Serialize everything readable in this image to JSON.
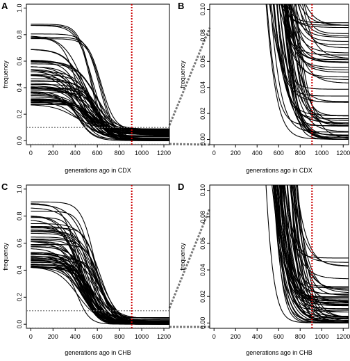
{
  "colors": {
    "curve": "#000000",
    "cutoff": "#cc0000",
    "guide": "#777777"
  },
  "chart_data": [
    {
      "panel": "A",
      "type": "line",
      "xlabel": "generations ago in CDX",
      "ylabel": "frequency",
      "xlim": [
        -40,
        1250
      ],
      "ylim": [
        -0.03,
        1.03
      ],
      "xticks": [
        "0",
        "200",
        "400",
        "600",
        "800",
        "1000",
        "1200"
      ],
      "yticks": [
        "0.0",
        "0.2",
        "0.4",
        "0.6",
        "0.8",
        "1.0"
      ],
      "xtick_values": [
        0,
        200,
        400,
        600,
        800,
        1000,
        1200
      ],
      "ytick_values": [
        0,
        0.2,
        0.4,
        0.6,
        0.8,
        1.0
      ],
      "cutoff_x": 910,
      "guide_y": [
        0.1,
        -0.03
      ],
      "series_generator": {
        "count": 58,
        "start_min": 0.27,
        "start_max": 0.88,
        "mid_min": 380,
        "mid_max": 640,
        "width": 75,
        "end_min": 0.0,
        "end_max": 0.11,
        "seed": 3
      }
    },
    {
      "panel": "B",
      "type": "line",
      "xlabel": "generations ago in CDX",
      "ylabel": "frequency",
      "xlim": [
        -40,
        1250
      ],
      "ylim": [
        -0.004,
        0.104
      ],
      "xticks": [
        "0",
        "200",
        "400",
        "600",
        "800",
        "1000",
        "1200"
      ],
      "yticks": [
        "0.00",
        "0.02",
        "0.04",
        "0.06",
        "0.08",
        "0.10"
      ],
      "xtick_values": [
        0,
        200,
        400,
        600,
        800,
        1000,
        1200
      ],
      "ytick_values": [
        0,
        0.02,
        0.04,
        0.06,
        0.08,
        0.1
      ],
      "cutoff_x": 910,
      "series_generator": {
        "count": 58,
        "start_min": 0.27,
        "start_max": 0.88,
        "mid_min": 380,
        "mid_max": 640,
        "width": 75,
        "end_min": 0.0,
        "end_max": 0.11,
        "seed": 3
      }
    },
    {
      "panel": "C",
      "type": "line",
      "xlabel": "generations ago in CHB",
      "ylabel": "frequency",
      "xlim": [
        -40,
        1250
      ],
      "ylim": [
        -0.03,
        1.03
      ],
      "xticks": [
        "0",
        "200",
        "400",
        "600",
        "800",
        "1000",
        "1200"
      ],
      "yticks": [
        "0.0",
        "0.2",
        "0.4",
        "0.6",
        "0.8",
        "1.0"
      ],
      "xtick_values": [
        0,
        200,
        400,
        600,
        800,
        1000,
        1200
      ],
      "ytick_values": [
        0,
        0.2,
        0.4,
        0.6,
        0.8,
        1.0
      ],
      "cutoff_x": 910,
      "guide_y": [
        0.1,
        -0.03
      ],
      "series_generator": {
        "count": 58,
        "start_min": 0.42,
        "start_max": 0.92,
        "mid_min": 420,
        "mid_max": 640,
        "width": 70,
        "end_min": 0.0,
        "end_max": 0.05,
        "seed": 11
      }
    },
    {
      "panel": "D",
      "type": "line",
      "xlabel": "generations ago in CHB",
      "ylabel": "frequency",
      "xlim": [
        -40,
        1250
      ],
      "ylim": [
        -0.004,
        0.104
      ],
      "xticks": [
        "0",
        "200",
        "400",
        "600",
        "800",
        "1000",
        "1200"
      ],
      "yticks": [
        "0.00",
        "0.02",
        "0.04",
        "0.06",
        "0.08",
        "0.10"
      ],
      "xtick_values": [
        0,
        200,
        400,
        600,
        800,
        1000,
        1200
      ],
      "ytick_values": [
        0,
        0.02,
        0.04,
        0.06,
        0.08,
        0.1
      ],
      "cutoff_x": 910,
      "series_generator": {
        "count": 58,
        "start_min": 0.42,
        "start_max": 0.92,
        "mid_min": 420,
        "mid_max": 640,
        "width": 70,
        "end_min": 0.0,
        "end_max": 0.05,
        "seed": 11
      }
    }
  ]
}
